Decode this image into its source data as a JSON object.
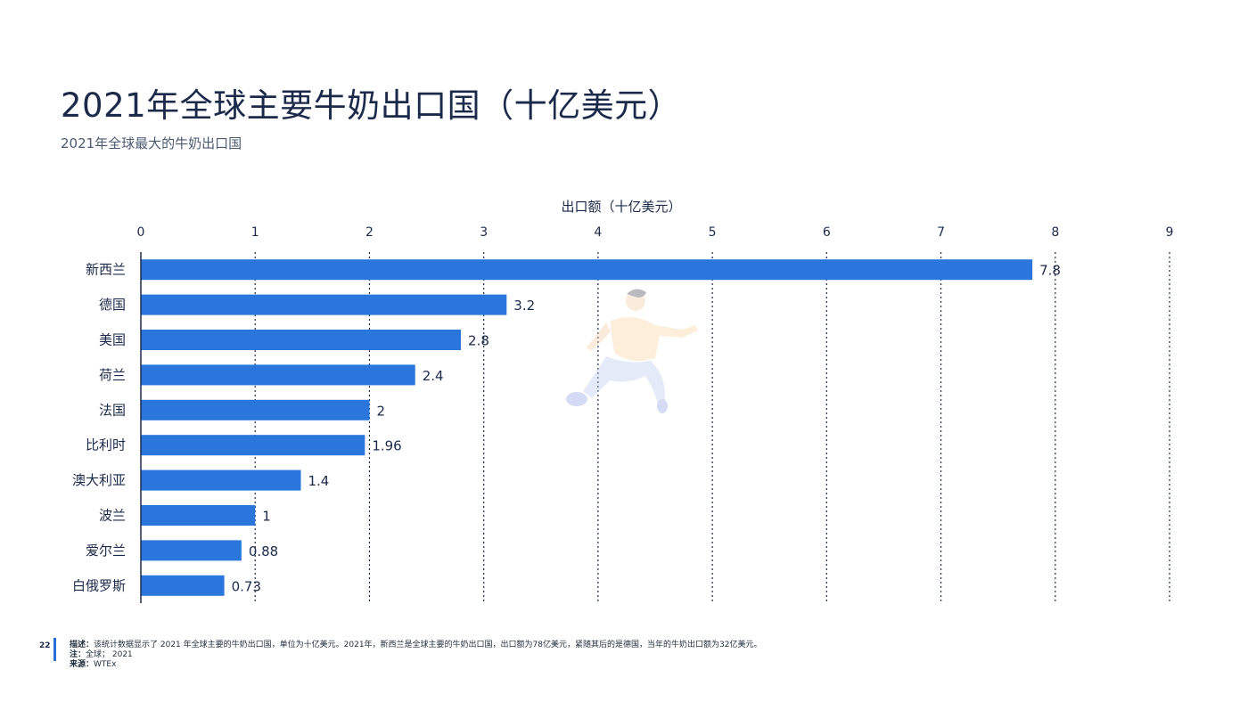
{
  "header": {
    "title": "2021年全球主要牛奶出口国（十亿美元）",
    "subtitle": "2021年全球最大的牛奶出口国"
  },
  "chart_data": {
    "type": "bar",
    "orientation": "horizontal",
    "xlabel": "出口额（十亿美元）",
    "xlim": [
      0,
      9
    ],
    "xticks": [
      0,
      1,
      2,
      3,
      4,
      5,
      6,
      7,
      8,
      9
    ],
    "categories": [
      "新西兰",
      "德国",
      "美国",
      "荷兰",
      "法国",
      "比利时",
      "澳大利亚",
      "波兰",
      "爱尔兰",
      "白俄罗斯"
    ],
    "values": [
      7.8,
      3.2,
      2.8,
      2.4,
      2,
      1.96,
      1.4,
      1,
      0.88,
      0.73
    ],
    "value_labels": [
      "7.8",
      "3.2",
      "2.8",
      "2.4",
      "2",
      "1.96",
      "1.4",
      "1",
      "0.88",
      "0.73"
    ],
    "bar_color": "#2a76dd",
    "grid": "vertical-dotted",
    "axis_position": "top"
  },
  "footer": {
    "page_number": "22",
    "description_label": "描述：",
    "description": "该统计数据显示了 2021 年全球主要的牛奶出口国，单位为十亿美元。2021年，新西兰是全球主要的牛奶出口国，出口额为78亿美元，紧随其后的是德国，当年的牛奶出口额为32亿美元。",
    "note_label": "注：",
    "note": "全球；  2021",
    "source_label": "来源：",
    "source": "WTEx"
  },
  "colors": {
    "accent": "#2a6fd6",
    "bar": "#2a76dd",
    "text": "#1b2a4a"
  },
  "icons": {
    "illustration": "running-person-illustration"
  }
}
